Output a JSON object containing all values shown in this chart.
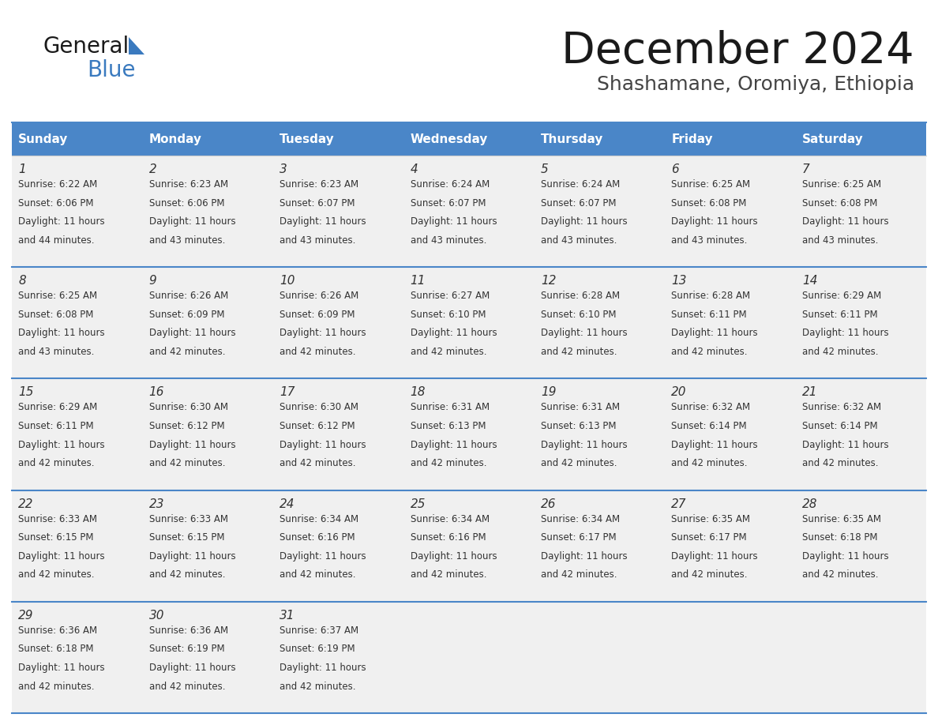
{
  "title": "December 2024",
  "subtitle": "Shashamane, Oromiya, Ethiopia",
  "days_of_week": [
    "Sunday",
    "Monday",
    "Tuesday",
    "Wednesday",
    "Thursday",
    "Friday",
    "Saturday"
  ],
  "header_bg": "#4a86c8",
  "header_text": "#ffffff",
  "cell_bg": "#f0f0f0",
  "divider_color": "#4a86c8",
  "text_color": "#333333",
  "title_color": "#1a1a1a",
  "subtitle_color": "#444444",
  "logo_general_color": "#1a1a1a",
  "logo_blue_color": "#3a7abf",
  "calendar_data": [
    [
      {
        "day": 1,
        "sunrise": "6:22 AM",
        "sunset": "6:06 PM",
        "daylight": "11 hours and 44 minutes."
      },
      {
        "day": 2,
        "sunrise": "6:23 AM",
        "sunset": "6:06 PM",
        "daylight": "11 hours and 43 minutes."
      },
      {
        "day": 3,
        "sunrise": "6:23 AM",
        "sunset": "6:07 PM",
        "daylight": "11 hours and 43 minutes."
      },
      {
        "day": 4,
        "sunrise": "6:24 AM",
        "sunset": "6:07 PM",
        "daylight": "11 hours and 43 minutes."
      },
      {
        "day": 5,
        "sunrise": "6:24 AM",
        "sunset": "6:07 PM",
        "daylight": "11 hours and 43 minutes."
      },
      {
        "day": 6,
        "sunrise": "6:25 AM",
        "sunset": "6:08 PM",
        "daylight": "11 hours and 43 minutes."
      },
      {
        "day": 7,
        "sunrise": "6:25 AM",
        "sunset": "6:08 PM",
        "daylight": "11 hours and 43 minutes."
      }
    ],
    [
      {
        "day": 8,
        "sunrise": "6:25 AM",
        "sunset": "6:08 PM",
        "daylight": "11 hours and 43 minutes."
      },
      {
        "day": 9,
        "sunrise": "6:26 AM",
        "sunset": "6:09 PM",
        "daylight": "11 hours and 42 minutes."
      },
      {
        "day": 10,
        "sunrise": "6:26 AM",
        "sunset": "6:09 PM",
        "daylight": "11 hours and 42 minutes."
      },
      {
        "day": 11,
        "sunrise": "6:27 AM",
        "sunset": "6:10 PM",
        "daylight": "11 hours and 42 minutes."
      },
      {
        "day": 12,
        "sunrise": "6:28 AM",
        "sunset": "6:10 PM",
        "daylight": "11 hours and 42 minutes."
      },
      {
        "day": 13,
        "sunrise": "6:28 AM",
        "sunset": "6:11 PM",
        "daylight": "11 hours and 42 minutes."
      },
      {
        "day": 14,
        "sunrise": "6:29 AM",
        "sunset": "6:11 PM",
        "daylight": "11 hours and 42 minutes."
      }
    ],
    [
      {
        "day": 15,
        "sunrise": "6:29 AM",
        "sunset": "6:11 PM",
        "daylight": "11 hours and 42 minutes."
      },
      {
        "day": 16,
        "sunrise": "6:30 AM",
        "sunset": "6:12 PM",
        "daylight": "11 hours and 42 minutes."
      },
      {
        "day": 17,
        "sunrise": "6:30 AM",
        "sunset": "6:12 PM",
        "daylight": "11 hours and 42 minutes."
      },
      {
        "day": 18,
        "sunrise": "6:31 AM",
        "sunset": "6:13 PM",
        "daylight": "11 hours and 42 minutes."
      },
      {
        "day": 19,
        "sunrise": "6:31 AM",
        "sunset": "6:13 PM",
        "daylight": "11 hours and 42 minutes."
      },
      {
        "day": 20,
        "sunrise": "6:32 AM",
        "sunset": "6:14 PM",
        "daylight": "11 hours and 42 minutes."
      },
      {
        "day": 21,
        "sunrise": "6:32 AM",
        "sunset": "6:14 PM",
        "daylight": "11 hours and 42 minutes."
      }
    ],
    [
      {
        "day": 22,
        "sunrise": "6:33 AM",
        "sunset": "6:15 PM",
        "daylight": "11 hours and 42 minutes."
      },
      {
        "day": 23,
        "sunrise": "6:33 AM",
        "sunset": "6:15 PM",
        "daylight": "11 hours and 42 minutes."
      },
      {
        "day": 24,
        "sunrise": "6:34 AM",
        "sunset": "6:16 PM",
        "daylight": "11 hours and 42 minutes."
      },
      {
        "day": 25,
        "sunrise": "6:34 AM",
        "sunset": "6:16 PM",
        "daylight": "11 hours and 42 minutes."
      },
      {
        "day": 26,
        "sunrise": "6:34 AM",
        "sunset": "6:17 PM",
        "daylight": "11 hours and 42 minutes."
      },
      {
        "day": 27,
        "sunrise": "6:35 AM",
        "sunset": "6:17 PM",
        "daylight": "11 hours and 42 minutes."
      },
      {
        "day": 28,
        "sunrise": "6:35 AM",
        "sunset": "6:18 PM",
        "daylight": "11 hours and 42 minutes."
      }
    ],
    [
      {
        "day": 29,
        "sunrise": "6:36 AM",
        "sunset": "6:18 PM",
        "daylight": "11 hours and 42 minutes."
      },
      {
        "day": 30,
        "sunrise": "6:36 AM",
        "sunset": "6:19 PM",
        "daylight": "11 hours and 42 minutes."
      },
      {
        "day": 31,
        "sunrise": "6:37 AM",
        "sunset": "6:19 PM",
        "daylight": "11 hours and 42 minutes."
      },
      null,
      null,
      null,
      null
    ]
  ]
}
